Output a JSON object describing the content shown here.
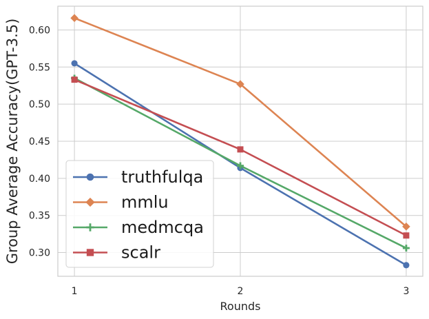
{
  "chart_data": {
    "type": "line",
    "xlabel": "Rounds",
    "ylabel": "Group Average Accuracy(GPT-3.5)",
    "x": [
      1,
      2,
      3
    ],
    "x_ticks": [
      "1",
      "2",
      "3"
    ],
    "y_ticks": [
      "0.30",
      "0.35",
      "0.40",
      "0.45",
      "0.50",
      "0.55",
      "0.60"
    ],
    "xlim": [
      0.9,
      3.1
    ],
    "ylim": [
      0.268,
      0.632
    ],
    "grid": true,
    "legend_position": "lower-left",
    "series": [
      {
        "name": "truthfulqa",
        "values": [
          0.555,
          0.414,
          0.283
        ],
        "color": "#4c72b0",
        "marker": "circle"
      },
      {
        "name": "mmlu",
        "values": [
          0.616,
          0.527,
          0.335
        ],
        "color": "#dd8452",
        "marker": "diamond"
      },
      {
        "name": "medmcqa",
        "values": [
          0.535,
          0.417,
          0.306
        ],
        "color": "#55a868",
        "marker": "plus"
      },
      {
        "name": "scalr",
        "values": [
          0.533,
          0.439,
          0.323
        ],
        "color": "#c44e52",
        "marker": "square"
      }
    ]
  }
}
